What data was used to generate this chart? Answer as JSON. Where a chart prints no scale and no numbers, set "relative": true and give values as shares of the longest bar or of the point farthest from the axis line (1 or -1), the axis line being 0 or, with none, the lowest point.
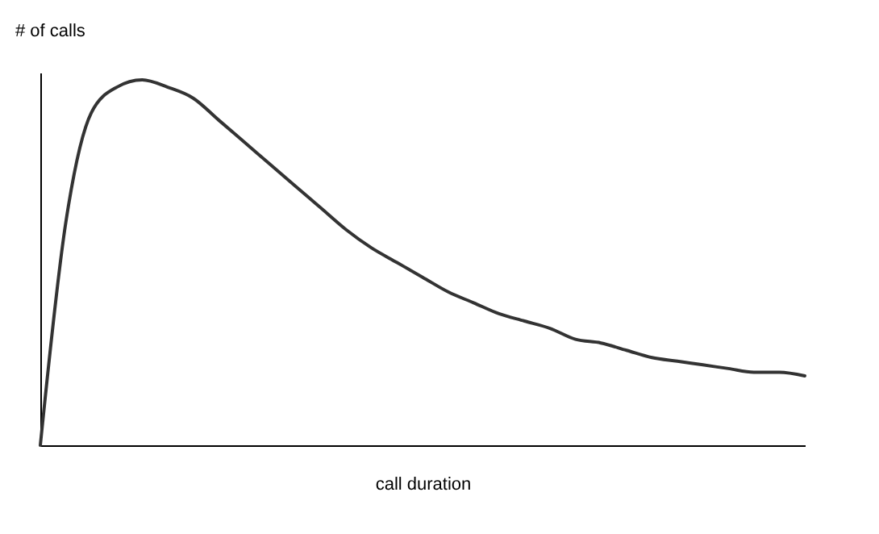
{
  "chart_data": {
    "type": "line",
    "relative": true,
    "xlabel": "call duration",
    "ylabel": "# of calls",
    "categories": [
      null,
      null,
      null,
      null,
      null,
      null,
      null,
      null,
      null,
      null,
      null,
      null,
      null,
      null,
      null,
      null,
      null,
      null,
      null,
      null,
      null,
      null,
      null,
      null,
      null,
      null,
      null,
      null,
      null,
      null,
      null
    ],
    "series": [
      {
        "color": "#333333",
        "values": [
          0,
          0.61,
          0.91,
          0.98,
          1.0,
          0.98,
          0.95,
          0.89,
          0.83,
          0.77,
          0.71,
          0.65,
          0.59,
          0.54,
          0.5,
          0.46,
          0.42,
          0.39,
          0.36,
          0.34,
          0.32,
          0.29,
          0.28,
          0.26,
          0.24,
          0.23,
          0.22,
          0.21,
          0.2,
          0.2,
          0.19
        ]
      }
    ],
    "marker": "none",
    "line_style": "solid"
  }
}
